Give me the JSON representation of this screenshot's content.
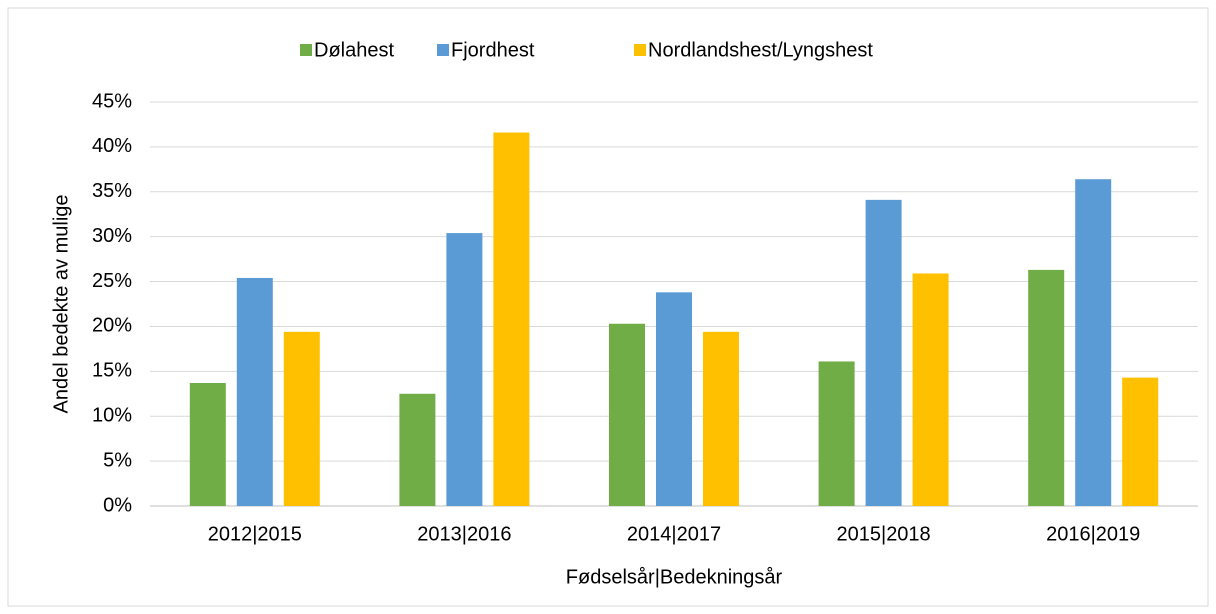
{
  "chart_data": {
    "type": "bar",
    "x_label": "Fødselsår|Bedekningsår",
    "y_label": "Andel bedekte av mulige",
    "categories": [
      "2012|2015",
      "2013|2016",
      "2014|2017",
      "2015|2018",
      "2016|2019"
    ],
    "series": [
      {
        "name": "Dølahest",
        "color": "#70ad47",
        "values": [
          13.7,
          12.5,
          20.3,
          16.1,
          26.3
        ]
      },
      {
        "name": "Fjordhest",
        "color": "#5b9bd5",
        "values": [
          25.4,
          30.4,
          23.8,
          34.1,
          36.4
        ]
      },
      {
        "name": "Nordlandshest/Lyngshest",
        "color": "#ffc000",
        "values": [
          19.4,
          41.6,
          19.4,
          25.9,
          14.3
        ]
      }
    ],
    "ylim": [
      0,
      45
    ],
    "yticks": [
      {
        "value": 0,
        "label": "0%"
      },
      {
        "value": 5,
        "label": "5%"
      },
      {
        "value": 10,
        "label": "10%"
      },
      {
        "value": 15,
        "label": "15%"
      },
      {
        "value": 20,
        "label": "20%"
      },
      {
        "value": 25,
        "label": "25%"
      },
      {
        "value": 30,
        "label": "30%"
      },
      {
        "value": 35,
        "label": "35%"
      },
      {
        "value": 40,
        "label": "40%"
      },
      {
        "value": 45,
        "label": "45%"
      }
    ],
    "grid": true,
    "legend": "top"
  }
}
